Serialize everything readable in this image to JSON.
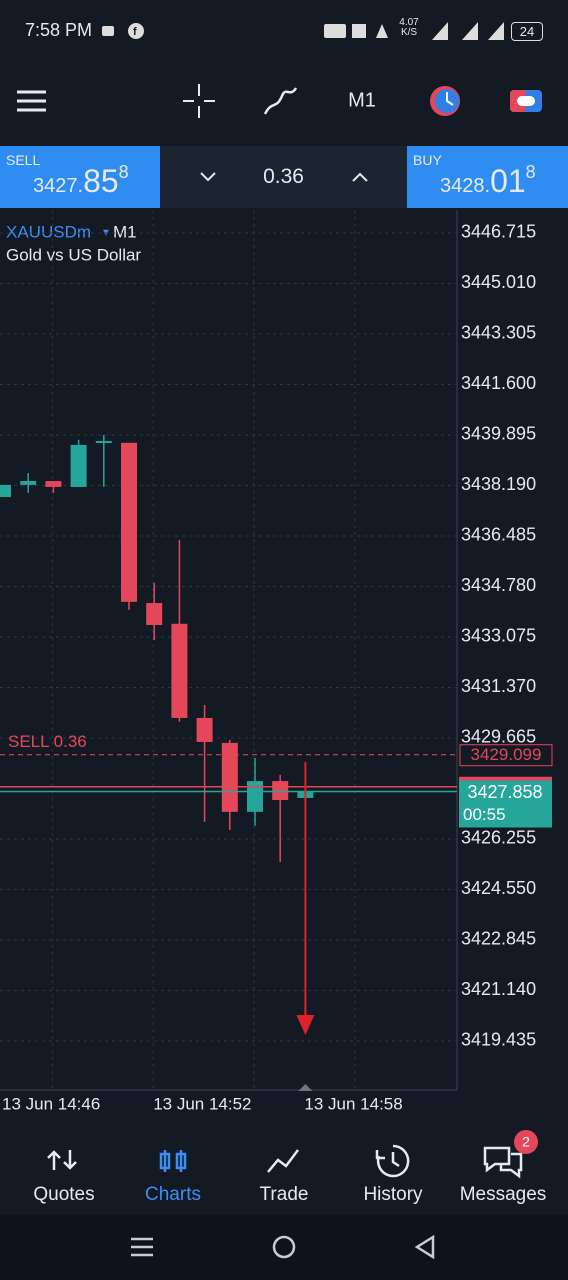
{
  "status_bar": {
    "time": "7:58 PM",
    "speed": "4.07",
    "speed_unit": "K/S",
    "battery": "24"
  },
  "toolbar": {
    "timeframe": "M1"
  },
  "trade_panel": {
    "sell_label": "SELL",
    "sell_big": "3427.",
    "sell_main": "85",
    "sell_sup": "8",
    "volume": "0.36",
    "buy_label": "BUY",
    "buy_big": "3428.",
    "buy_main": "01",
    "buy_sup": "8"
  },
  "chart_data": {
    "type": "candlestick",
    "symbol": "XAUUSDm",
    "timeframe": "M1",
    "description": "Gold vs US Dollar",
    "categories": [
      "13 Jun 14:46",
      null,
      null,
      null,
      null,
      null,
      "13 Jun 14:52",
      null,
      null,
      null,
      null,
      null,
      "13 Jun 14:58"
    ],
    "open": [
      3437.8,
      3438.21,
      3438.34,
      3438.14,
      3439.63,
      3439.63,
      3434.22,
      3433.52,
      3430.34,
      3429.5,
      3427.17,
      3428.21,
      3427.64
    ],
    "high": [
      3438.21,
      3438.61,
      3438.34,
      3439.73,
      3439.9,
      3439.63,
      3434.9,
      3436.35,
      3430.78,
      3429.6,
      3428.99,
      3428.42,
      3427.858
    ],
    "low": [
      3437.8,
      3437.94,
      3437.94,
      3438.14,
      3438.14,
      3433.99,
      3432.97,
      3430.21,
      3426.83,
      3426.56,
      3426.7,
      3425.48,
      3427.64
    ],
    "close": [
      3438.21,
      3438.34,
      3438.14,
      3439.56,
      3439.69,
      3434.26,
      3433.48,
      3430.34,
      3429.53,
      3427.17,
      3428.21,
      3427.57,
      3427.858
    ],
    "up_color": "#26a69a",
    "down_color": "#e5475a",
    "ylim": [
      3417.78,
      3447.49
    ],
    "yticks": [
      3446.715,
      {
        "value": 3445.01,
        "label": "3445.010"
      },
      3443.305,
      {
        "value": 3441.6,
        "label": "3441.600"
      },
      3439.895,
      {
        "value": 3438.19,
        "label": "3438.190"
      },
      3436.485,
      {
        "value": 3434.78,
        "label": "3434.780"
      },
      3433.075,
      {
        "value": 3431.37,
        "label": "3431.370"
      },
      3429.665,
      3426.255,
      {
        "value": 3424.55,
        "label": "3424.550"
      },
      3422.845,
      {
        "value": 3421.14,
        "label": "3421.140"
      },
      3419.435
    ],
    "grid": true,
    "position": {
      "label": "SELL 0.36",
      "price": 3429.099
    },
    "bid": 3427.858,
    "timer": "00:55"
  },
  "nav": {
    "items": [
      "Quotes",
      "Charts",
      "Trade",
      "History",
      "Messages"
    ],
    "active": 1,
    "badge": "2"
  }
}
